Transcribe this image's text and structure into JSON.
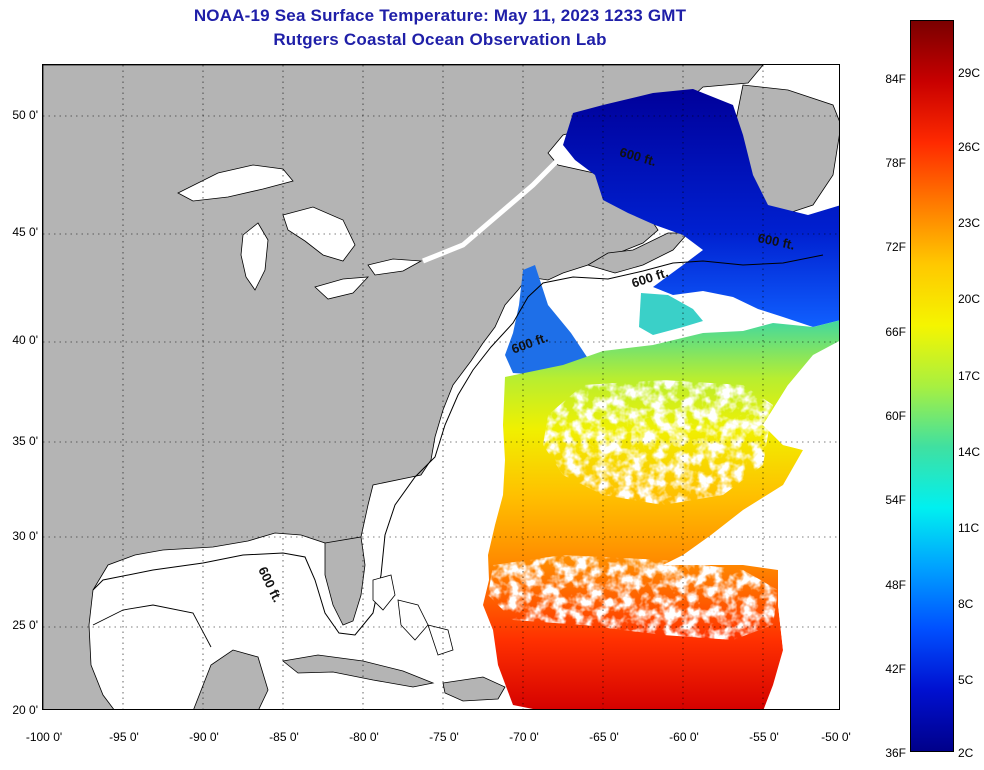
{
  "title": {
    "line1": "NOAA-19 Sea Surface Temperature:  May 11, 2023 1233 GMT",
    "line2": "Rutgers Coastal Ocean Observation Lab"
  },
  "latitude_labels": [
    "50 0'",
    "45 0'",
    "40 0'",
    "35 0'",
    "30 0'",
    "25 0'",
    "20 0'"
  ],
  "longitude_labels": [
    "-100 0'",
    "-95 0'",
    "-90 0'",
    "-85 0'",
    "-80 0'",
    "-75 0'",
    "-70 0'",
    "-65 0'",
    "-60 0'",
    "-55 0'",
    "-50 0'"
  ],
  "colorbar": {
    "fahrenheit_labels": [
      "84F",
      "78F",
      "72F",
      "66F",
      "60F",
      "54F",
      "48F",
      "42F",
      "36F"
    ],
    "celsius_labels": [
      "29C",
      "26C",
      "23C",
      "20C",
      "17C",
      "14C",
      "11C",
      "8C",
      "5C",
      "2C"
    ],
    "colors": [
      "#7a0000",
      "#c80000",
      "#ff2a00",
      "#ff7a00",
      "#ffc800",
      "#f5f500",
      "#a8f040",
      "#40e0a0",
      "#00f0f0",
      "#00a0ff",
      "#0050ff",
      "#0010d0",
      "#00008a"
    ]
  },
  "contour_labels": [
    "600 ft.",
    "600 ft.",
    "600 ft.",
    "600 ft.",
    "600 ft."
  ],
  "colors": {
    "land": "#b4b4b4",
    "title": "#1f1fa8",
    "no_data": "#ffffff"
  }
}
